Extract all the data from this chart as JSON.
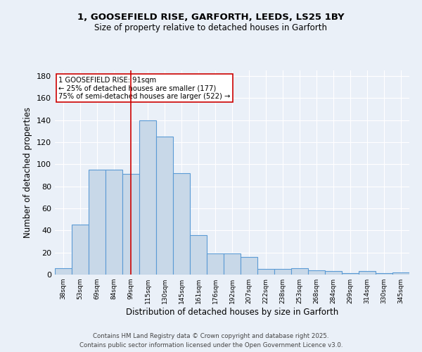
{
  "title_line1": "1, GOOSEFIELD RISE, GARFORTH, LEEDS, LS25 1BY",
  "title_line2": "Size of property relative to detached houses in Garforth",
  "xlabel": "Distribution of detached houses by size in Garforth",
  "ylabel": "Number of detached properties",
  "categories": [
    "38sqm",
    "53sqm",
    "69sqm",
    "84sqm",
    "99sqm",
    "115sqm",
    "130sqm",
    "145sqm",
    "161sqm",
    "176sqm",
    "192sqm",
    "207sqm",
    "222sqm",
    "238sqm",
    "253sqm",
    "268sqm",
    "284sqm",
    "299sqm",
    "314sqm",
    "330sqm",
    "345sqm"
  ],
  "values": [
    6,
    45,
    95,
    95,
    91,
    140,
    125,
    92,
    36,
    19,
    19,
    16,
    5,
    5,
    6,
    4,
    3,
    1,
    3,
    1,
    2
  ],
  "bar_color": "#c8d8e8",
  "bar_edge_color": "#5b9bd5",
  "vline_x": 4,
  "vline_color": "#cc0000",
  "annotation_text": "1 GOOSEFIELD RISE: 91sqm\n← 25% of detached houses are smaller (177)\n75% of semi-detached houses are larger (522) →",
  "annotation_box_color": "#ffffff",
  "annotation_box_edge": "#cc0000",
  "ylim": [
    0,
    185
  ],
  "yticks": [
    0,
    20,
    40,
    60,
    80,
    100,
    120,
    140,
    160,
    180
  ],
  "footer_line1": "Contains HM Land Registry data © Crown copyright and database right 2025.",
  "footer_line2": "Contains public sector information licensed under the Open Government Licence v3.0.",
  "background_color": "#eaf0f8",
  "grid_color": "#ffffff"
}
